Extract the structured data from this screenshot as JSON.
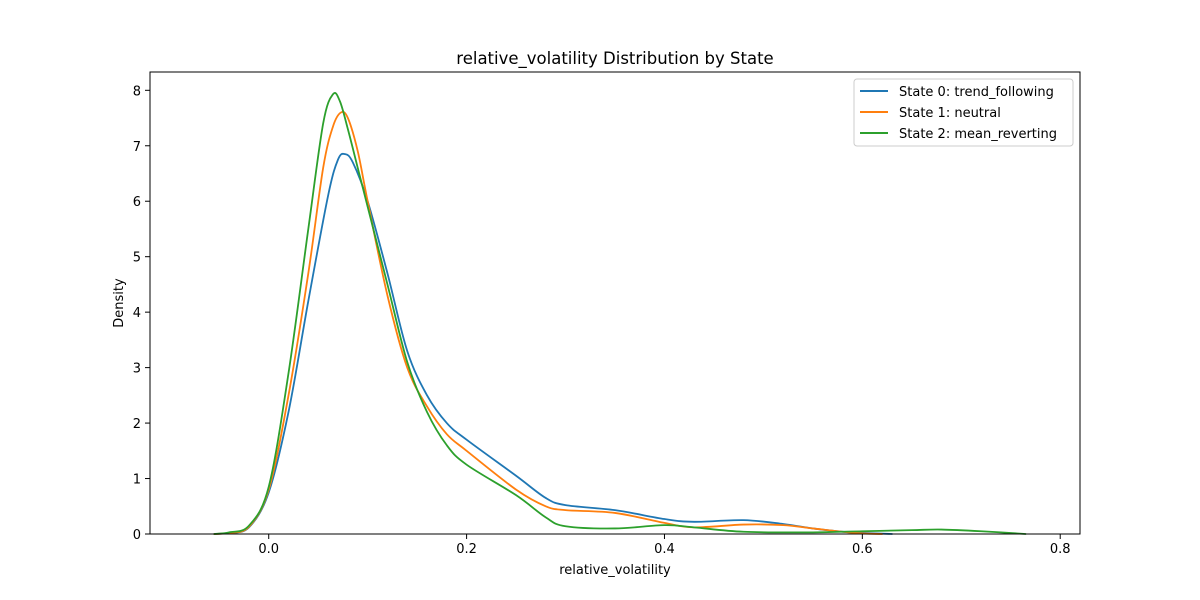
{
  "chart_data": {
    "type": "line",
    "title": "relative_volatility Distribution by State",
    "xlabel": "relative_volatility",
    "ylabel": "Density",
    "xlim": [
      -0.12,
      0.82
    ],
    "ylim": [
      0,
      8.33
    ],
    "xticks": [
      0.0,
      0.2,
      0.4,
      0.6,
      0.8
    ],
    "xtick_labels": [
      "0.0",
      "0.2",
      "0.4",
      "0.6",
      "0.8"
    ],
    "yticks": [
      0,
      1,
      2,
      3,
      4,
      5,
      6,
      7,
      8
    ],
    "ytick_labels": [
      "0",
      "1",
      "2",
      "3",
      "4",
      "5",
      "6",
      "7",
      "8"
    ],
    "grid": false,
    "legend_position": "top-right",
    "series": [
      {
        "name": "State 0: trend_following",
        "color": "#1f77b4",
        "points": [
          [
            -0.055,
            0
          ],
          [
            -0.04,
            0.02
          ],
          [
            -0.02,
            0.12
          ],
          [
            0.0,
            0.75
          ],
          [
            0.02,
            2.2
          ],
          [
            0.04,
            4.2
          ],
          [
            0.06,
            6.1
          ],
          [
            0.07,
            6.75
          ],
          [
            0.077,
            6.85
          ],
          [
            0.085,
            6.7
          ],
          [
            0.1,
            6.0
          ],
          [
            0.12,
            4.7
          ],
          [
            0.14,
            3.3
          ],
          [
            0.16,
            2.5
          ],
          [
            0.18,
            2.0
          ],
          [
            0.2,
            1.7
          ],
          [
            0.25,
            1.05
          ],
          [
            0.28,
            0.65
          ],
          [
            0.3,
            0.52
          ],
          [
            0.35,
            0.43
          ],
          [
            0.4,
            0.27
          ],
          [
            0.43,
            0.22
          ],
          [
            0.48,
            0.25
          ],
          [
            0.52,
            0.18
          ],
          [
            0.55,
            0.1
          ],
          [
            0.58,
            0.04
          ],
          [
            0.6,
            0.02
          ],
          [
            0.63,
            0
          ]
        ]
      },
      {
        "name": "State 1: neutral",
        "color": "#ff7f0e",
        "points": [
          [
            -0.055,
            0
          ],
          [
            -0.04,
            0.02
          ],
          [
            -0.02,
            0.13
          ],
          [
            0.0,
            0.8
          ],
          [
            0.02,
            2.5
          ],
          [
            0.04,
            4.7
          ],
          [
            0.055,
            6.6
          ],
          [
            0.065,
            7.35
          ],
          [
            0.073,
            7.6
          ],
          [
            0.08,
            7.5
          ],
          [
            0.09,
            6.9
          ],
          [
            0.1,
            6.0
          ],
          [
            0.12,
            4.3
          ],
          [
            0.14,
            3.0
          ],
          [
            0.16,
            2.3
          ],
          [
            0.18,
            1.8
          ],
          [
            0.2,
            1.5
          ],
          [
            0.25,
            0.8
          ],
          [
            0.28,
            0.5
          ],
          [
            0.3,
            0.43
          ],
          [
            0.35,
            0.38
          ],
          [
            0.4,
            0.2
          ],
          [
            0.43,
            0.12
          ],
          [
            0.48,
            0.17
          ],
          [
            0.52,
            0.16
          ],
          [
            0.55,
            0.1
          ],
          [
            0.58,
            0.04
          ],
          [
            0.6,
            0.01
          ],
          [
            0.62,
            0
          ]
        ]
      },
      {
        "name": "State 2: mean_reverting",
        "color": "#2ca02c",
        "points": [
          [
            -0.055,
            0
          ],
          [
            -0.04,
            0.03
          ],
          [
            -0.02,
            0.15
          ],
          [
            0.0,
            0.85
          ],
          [
            0.02,
            2.9
          ],
          [
            0.04,
            5.5
          ],
          [
            0.055,
            7.4
          ],
          [
            0.065,
            7.93
          ],
          [
            0.072,
            7.8
          ],
          [
            0.08,
            7.3
          ],
          [
            0.09,
            6.6
          ],
          [
            0.1,
            5.9
          ],
          [
            0.12,
            4.5
          ],
          [
            0.14,
            3.1
          ],
          [
            0.16,
            2.2
          ],
          [
            0.18,
            1.6
          ],
          [
            0.2,
            1.25
          ],
          [
            0.25,
            0.7
          ],
          [
            0.28,
            0.3
          ],
          [
            0.3,
            0.14
          ],
          [
            0.35,
            0.1
          ],
          [
            0.4,
            0.16
          ],
          [
            0.43,
            0.12
          ],
          [
            0.48,
            0.04
          ],
          [
            0.55,
            0.03
          ],
          [
            0.6,
            0.05
          ],
          [
            0.65,
            0.07
          ],
          [
            0.68,
            0.08
          ],
          [
            0.72,
            0.05
          ],
          [
            0.765,
            0
          ]
        ]
      }
    ]
  }
}
